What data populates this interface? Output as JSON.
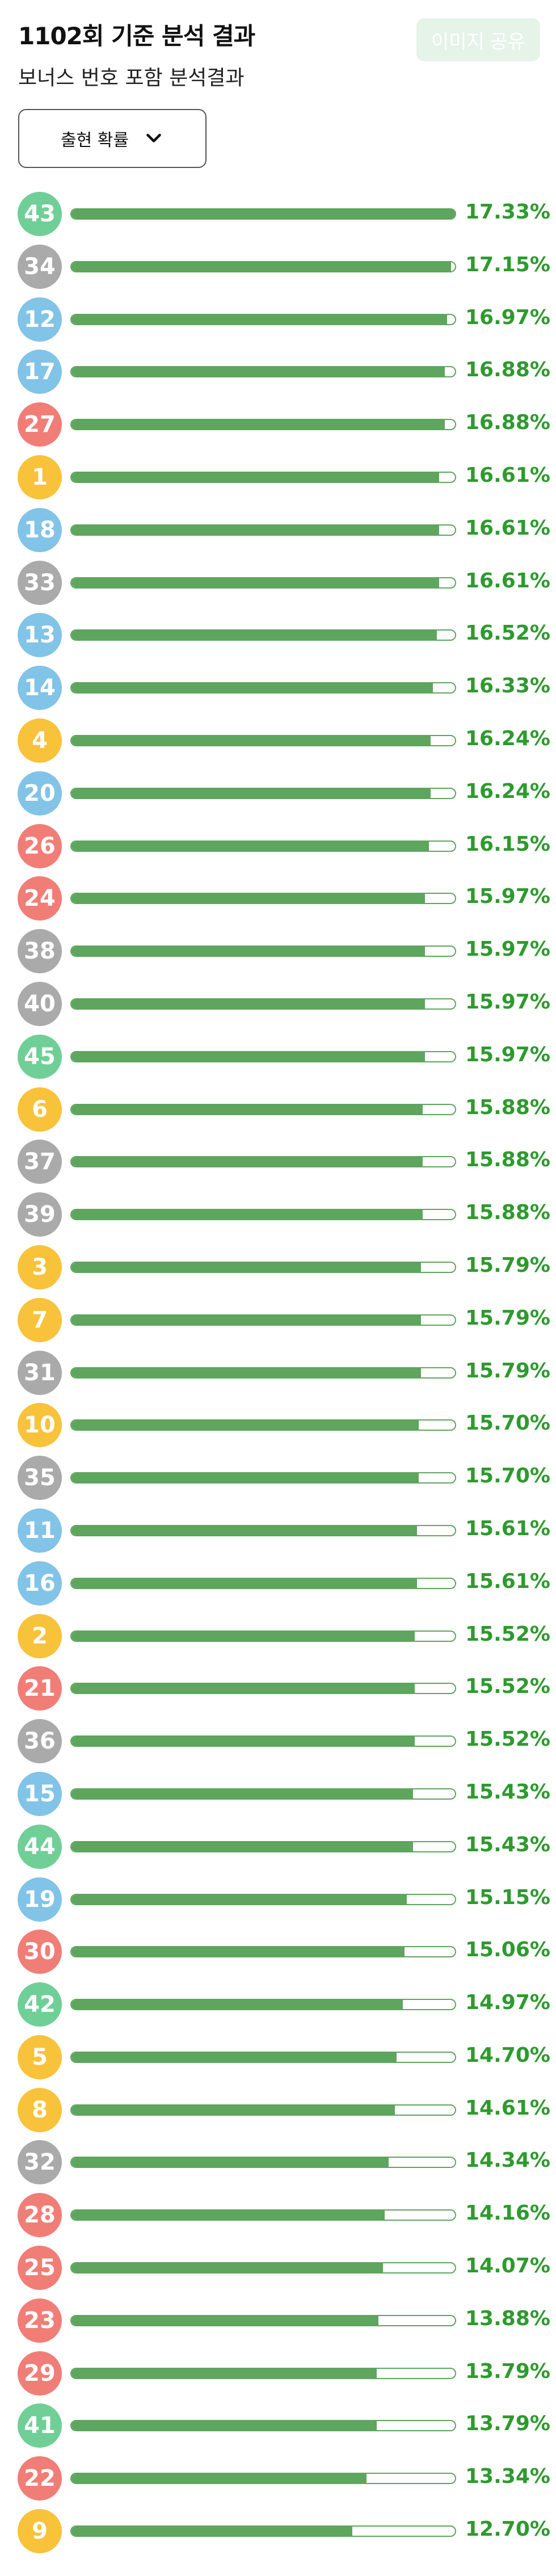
{
  "header": {
    "title": "1102회 기준 분석 결과",
    "subtitle": "보너스 번호 포함 분석결과",
    "share_label": "이미지 공유",
    "dropdown_label": "출현 확률",
    "dropdown_icon": "chevron-down-icon"
  },
  "colors": {
    "yellow": "#f8c23a",
    "blue": "#82c3e8",
    "red": "#f07e77",
    "gray": "#aaaaaa",
    "green": "#6fcf97",
    "bar": "#5ea55e",
    "percent_text": "#2e9a2e"
  },
  "chart_data": {
    "type": "bar",
    "xlim": [
      0,
      17.33
    ],
    "items": [
      {
        "number": "43",
        "percent": "17.33%",
        "value": 17.33,
        "color": "green"
      },
      {
        "number": "34",
        "percent": "17.15%",
        "value": 17.15,
        "color": "gray"
      },
      {
        "number": "12",
        "percent": "16.97%",
        "value": 16.97,
        "color": "blue"
      },
      {
        "number": "17",
        "percent": "16.88%",
        "value": 16.88,
        "color": "blue"
      },
      {
        "number": "27",
        "percent": "16.88%",
        "value": 16.88,
        "color": "red"
      },
      {
        "number": "1",
        "percent": "16.61%",
        "value": 16.61,
        "color": "yellow"
      },
      {
        "number": "18",
        "percent": "16.61%",
        "value": 16.61,
        "color": "blue"
      },
      {
        "number": "33",
        "percent": "16.61%",
        "value": 16.61,
        "color": "gray"
      },
      {
        "number": "13",
        "percent": "16.52%",
        "value": 16.52,
        "color": "blue"
      },
      {
        "number": "14",
        "percent": "16.33%",
        "value": 16.33,
        "color": "blue"
      },
      {
        "number": "4",
        "percent": "16.24%",
        "value": 16.24,
        "color": "yellow"
      },
      {
        "number": "20",
        "percent": "16.24%",
        "value": 16.24,
        "color": "blue"
      },
      {
        "number": "26",
        "percent": "16.15%",
        "value": 16.15,
        "color": "red"
      },
      {
        "number": "24",
        "percent": "15.97%",
        "value": 15.97,
        "color": "red"
      },
      {
        "number": "38",
        "percent": "15.97%",
        "value": 15.97,
        "color": "gray"
      },
      {
        "number": "40",
        "percent": "15.97%",
        "value": 15.97,
        "color": "gray"
      },
      {
        "number": "45",
        "percent": "15.97%",
        "value": 15.97,
        "color": "green"
      },
      {
        "number": "6",
        "percent": "15.88%",
        "value": 15.88,
        "color": "yellow"
      },
      {
        "number": "37",
        "percent": "15.88%",
        "value": 15.88,
        "color": "gray"
      },
      {
        "number": "39",
        "percent": "15.88%",
        "value": 15.88,
        "color": "gray"
      },
      {
        "number": "3",
        "percent": "15.79%",
        "value": 15.79,
        "color": "yellow"
      },
      {
        "number": "7",
        "percent": "15.79%",
        "value": 15.79,
        "color": "yellow"
      },
      {
        "number": "31",
        "percent": "15.79%",
        "value": 15.79,
        "color": "gray"
      },
      {
        "number": "10",
        "percent": "15.70%",
        "value": 15.7,
        "color": "yellow"
      },
      {
        "number": "35",
        "percent": "15.70%",
        "value": 15.7,
        "color": "gray"
      },
      {
        "number": "11",
        "percent": "15.61%",
        "value": 15.61,
        "color": "blue"
      },
      {
        "number": "16",
        "percent": "15.61%",
        "value": 15.61,
        "color": "blue"
      },
      {
        "number": "2",
        "percent": "15.52%",
        "value": 15.52,
        "color": "yellow"
      },
      {
        "number": "21",
        "percent": "15.52%",
        "value": 15.52,
        "color": "red"
      },
      {
        "number": "36",
        "percent": "15.52%",
        "value": 15.52,
        "color": "gray"
      },
      {
        "number": "15",
        "percent": "15.43%",
        "value": 15.43,
        "color": "blue"
      },
      {
        "number": "44",
        "percent": "15.43%",
        "value": 15.43,
        "color": "green"
      },
      {
        "number": "19",
        "percent": "15.15%",
        "value": 15.15,
        "color": "blue"
      },
      {
        "number": "30",
        "percent": "15.06%",
        "value": 15.06,
        "color": "red"
      },
      {
        "number": "42",
        "percent": "14.97%",
        "value": 14.97,
        "color": "green"
      },
      {
        "number": "5",
        "percent": "14.70%",
        "value": 14.7,
        "color": "yellow"
      },
      {
        "number": "8",
        "percent": "14.61%",
        "value": 14.61,
        "color": "yellow"
      },
      {
        "number": "32",
        "percent": "14.34%",
        "value": 14.34,
        "color": "gray"
      },
      {
        "number": "28",
        "percent": "14.16%",
        "value": 14.16,
        "color": "red"
      },
      {
        "number": "25",
        "percent": "14.07%",
        "value": 14.07,
        "color": "red"
      },
      {
        "number": "23",
        "percent": "13.88%",
        "value": 13.88,
        "color": "red"
      },
      {
        "number": "29",
        "percent": "13.79%",
        "value": 13.79,
        "color": "red"
      },
      {
        "number": "41",
        "percent": "13.79%",
        "value": 13.79,
        "color": "green"
      },
      {
        "number": "22",
        "percent": "13.34%",
        "value": 13.34,
        "color": "red"
      },
      {
        "number": "9",
        "percent": "12.70%",
        "value": 12.7,
        "color": "yellow"
      }
    ]
  }
}
